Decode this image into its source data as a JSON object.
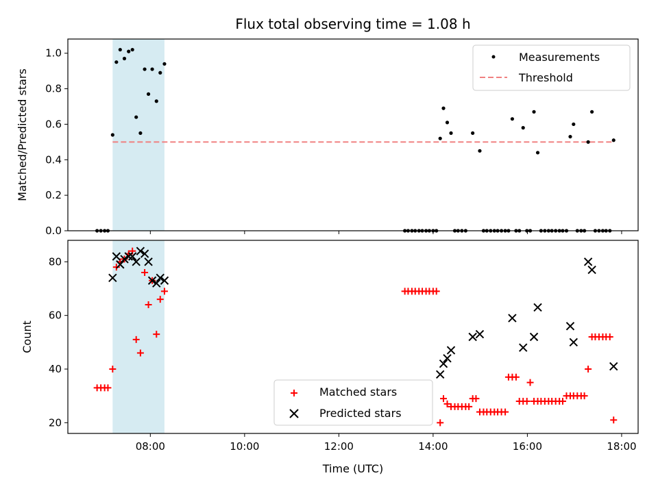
{
  "chart_data": {
    "type": "scatter",
    "title": "Flux total observing time = 1.08 h",
    "xlabel": "Time (UTC)",
    "x_unit": "hours UTC",
    "xlim": [
      6.25,
      18.35
    ],
    "xticks": [
      8,
      10,
      12,
      14,
      16,
      18
    ],
    "xtick_labels": [
      "08:00",
      "10:00",
      "12:00",
      "14:00",
      "16:00",
      "18:00"
    ],
    "shaded_interval": [
      7.2,
      8.3
    ],
    "shaded_color": "#add8e6",
    "panels": [
      {
        "ylabel": "Matched/Predicted stars",
        "ylim": [
          0.0,
          1.08
        ],
        "yticks": [
          0.0,
          0.2,
          0.4,
          0.6,
          0.8,
          1.0
        ],
        "ytick_labels": [
          "0.0",
          "0.2",
          "0.4",
          "0.6",
          "0.8",
          "1.0"
        ],
        "legend": "top-right",
        "threshold": {
          "name": "Threshold",
          "y": 0.5,
          "x": [
            7.2,
            17.83
          ],
          "color": "#f08080",
          "style": "dashed"
        },
        "series": [
          {
            "name": "Measurements",
            "marker": "dot",
            "color": "#000000",
            "x": [
              6.87,
              6.95,
              7.03,
              7.1,
              7.2,
              7.28,
              7.36,
              7.45,
              7.54,
              7.62,
              7.7,
              7.79,
              7.88,
              7.96,
              8.04,
              8.13,
              8.21,
              8.3,
              13.4,
              13.47,
              13.55,
              13.62,
              13.7,
              13.77,
              13.85,
              13.92,
              14.0,
              14.07,
              14.15,
              14.22,
              14.3,
              14.38,
              14.46,
              14.53,
              14.61,
              14.69,
              14.84,
              14.99,
              15.07,
              15.14,
              15.22,
              15.3,
              15.37,
              15.45,
              15.53,
              15.6,
              15.68,
              15.76,
              15.83,
              15.91,
              15.99,
              16.06,
              16.14,
              16.22,
              16.29,
              16.37,
              16.45,
              16.52,
              16.6,
              16.68,
              16.75,
              16.83,
              16.91,
              16.98,
              17.06,
              17.14,
              17.21,
              17.29,
              17.37,
              17.44,
              17.52,
              17.6,
              17.67,
              17.75,
              17.83
            ],
            "y": [
              0,
              0,
              0,
              0,
              0.54,
              0.95,
              1.02,
              0.97,
              1.01,
              1.02,
              0.64,
              0.55,
              0.91,
              0.77,
              0.91,
              0.73,
              0.89,
              0.94,
              0,
              0,
              0,
              0,
              0,
              0,
              0,
              0,
              0,
              0,
              0.52,
              0.69,
              0.61,
              0.55,
              0,
              0,
              0,
              0,
              0.55,
              0.45,
              0,
              0,
              0,
              0,
              0,
              0,
              0,
              0,
              0.63,
              0,
              0,
              0.58,
              0,
              0,
              0.67,
              0.44,
              0,
              0,
              0,
              0,
              0,
              0,
              0,
              0,
              0.53,
              0.6,
              0,
              0,
              0,
              0.5,
              0.67,
              0,
              0,
              0,
              0,
              0,
              0.51
            ]
          }
        ]
      },
      {
        "ylabel": "Count",
        "ylim": [
          16,
          88
        ],
        "yticks": [
          20,
          40,
          60,
          80
        ],
        "ytick_labels": [
          "20",
          "40",
          "60",
          "80"
        ],
        "legend": "lower-center",
        "series": [
          {
            "name": "Matched stars",
            "marker": "plus",
            "color": "#ff0000",
            "x": [
              6.87,
              6.95,
              7.03,
              7.1,
              7.2,
              7.28,
              7.36,
              7.45,
              7.54,
              7.62,
              7.7,
              7.79,
              7.88,
              7.96,
              8.04,
              8.13,
              8.21,
              8.3,
              13.4,
              13.47,
              13.55,
              13.62,
              13.7,
              13.77,
              13.85,
              13.92,
              14.0,
              14.07,
              14.15,
              14.22,
              14.3,
              14.38,
              14.46,
              14.53,
              14.61,
              14.69,
              14.76,
              14.84,
              14.91,
              14.99,
              15.07,
              15.14,
              15.22,
              15.3,
              15.37,
              15.45,
              15.53,
              15.6,
              15.68,
              15.76,
              15.83,
              15.91,
              15.99,
              16.06,
              16.14,
              16.22,
              16.29,
              16.37,
              16.45,
              16.52,
              16.6,
              16.68,
              16.75,
              16.83,
              16.91,
              16.98,
              17.06,
              17.14,
              17.21,
              17.29,
              17.37,
              17.44,
              17.52,
              17.6,
              17.67,
              17.75,
              17.83
            ],
            "y": [
              33,
              33,
              33,
              33,
              40,
              78,
              80,
              81,
              83,
              84,
              51,
              46,
              76,
              64,
              73,
              53,
              66,
              69,
              69,
              69,
              69,
              69,
              69,
              69,
              69,
              69,
              69,
              69,
              20,
              29,
              27,
              26,
              26,
              26,
              26,
              26,
              26,
              29,
              29,
              24,
              24,
              24,
              24,
              24,
              24,
              24,
              24,
              37,
              37,
              37,
              28,
              28,
              28,
              35,
              28,
              28,
              28,
              28,
              28,
              28,
              28,
              28,
              28,
              30,
              30,
              30,
              30,
              30,
              30,
              40,
              52,
              52,
              52,
              52,
              52,
              52,
              21
            ]
          },
          {
            "name": "Predicted stars",
            "marker": "cross",
            "color": "#000000",
            "x": [
              7.2,
              7.28,
              7.36,
              7.45,
              7.54,
              7.62,
              7.7,
              7.79,
              7.88,
              7.96,
              8.04,
              8.13,
              8.21,
              8.3,
              14.15,
              14.22,
              14.3,
              14.38,
              14.84,
              14.99,
              15.68,
              15.91,
              16.14,
              16.22,
              16.91,
              16.98,
              17.29,
              17.37,
              17.83
            ],
            "y": [
              74,
              82,
              79,
              81,
              82,
              82,
              80,
              84,
              83,
              80,
              73,
              72,
              74,
              73,
              38,
              42,
              44,
              47,
              52,
              53,
              59,
              48,
              52,
              63,
              56,
              50,
              80,
              77,
              41
            ]
          }
        ]
      }
    ]
  }
}
